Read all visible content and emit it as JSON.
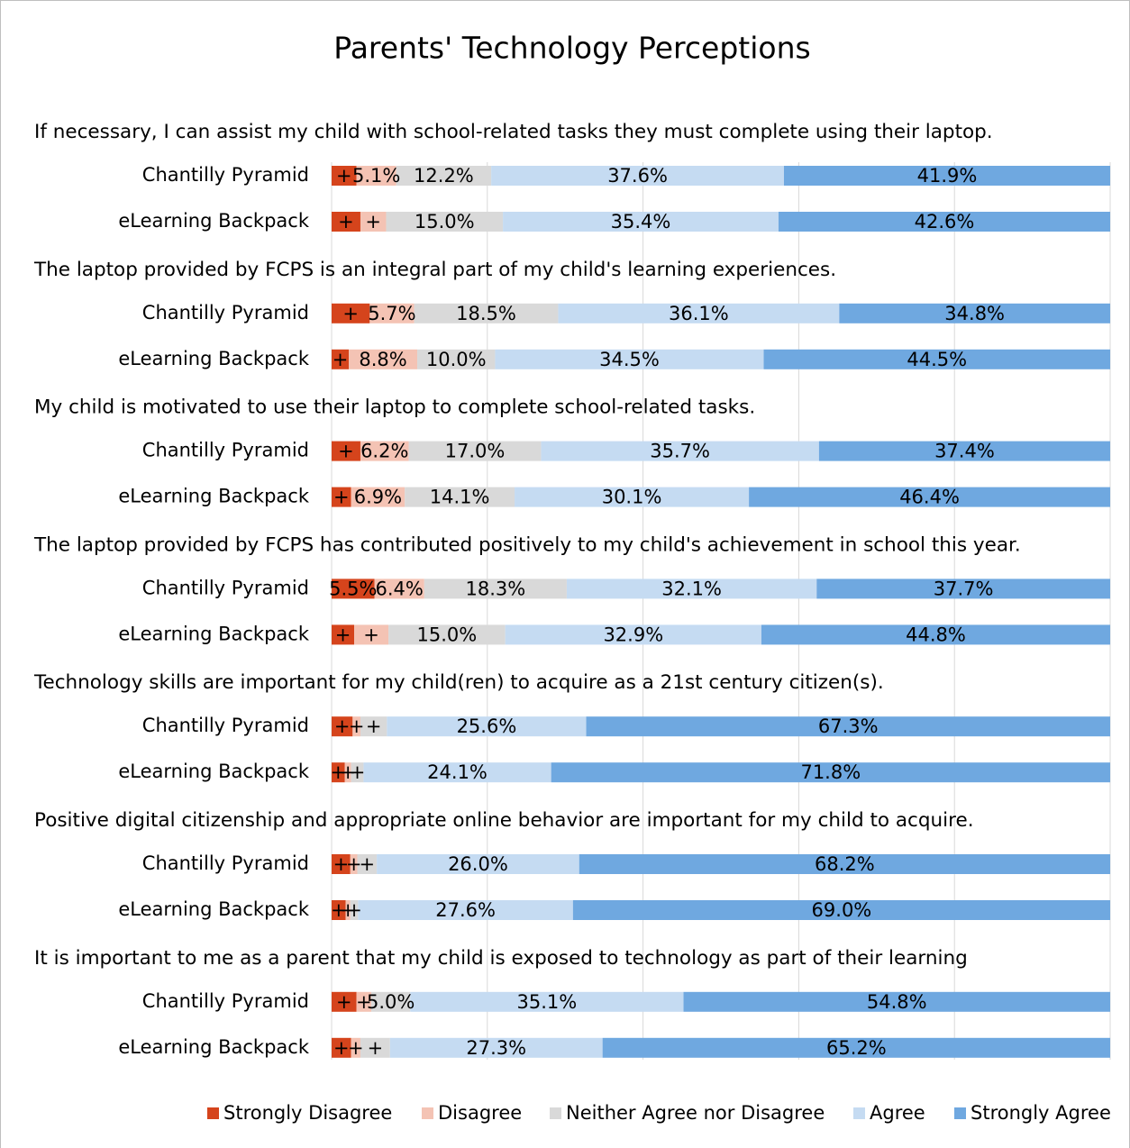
{
  "chart_data": {
    "type": "stacked_barh",
    "title": "Parents' Technology Perceptions",
    "questions": [
      "If necessary, I can assist my child with school-related tasks they must complete using their laptop.",
      "The laptop provided by FCPS is an integral part of my child's learning experiences.",
      "My child is motivated to use their laptop to complete school-related tasks.",
      "The laptop provided by FCPS has contributed positively to my child's achievement in school this year.",
      "Technology skills are important for my child(ren) to acquire as a 21st century citizen(s).",
      "Positive digital citizenship and appropriate online behavior are important for my child to acquire.",
      "It is important to me as a parent that my child is exposed to technology as part of their learning"
    ],
    "categories": [
      "Chantilly Pyramid",
      "eLearning Backpack",
      "Chantilly Pyramid",
      "eLearning Backpack",
      "Chantilly Pyramid",
      "eLearning Backpack",
      "Chantilly Pyramid",
      "eLearning Backpack",
      "Chantilly Pyramid",
      "eLearning Backpack",
      "Chantilly Pyramid",
      "eLearning Backpack",
      "Chantilly Pyramid",
      "eLearning Backpack"
    ],
    "series": [
      {
        "name": "Strongly Disagree",
        "color": "#d5441c",
        "values": [
          3.2,
          3.7,
          4.9,
          2.2,
          3.7,
          2.5,
          5.5,
          2.9,
          2.7,
          1.7,
          2.4,
          1.8,
          3.2,
          2.5
        ],
        "value_labels": [
          "+",
          "+",
          "+",
          "+",
          "+",
          "+",
          "5.5%",
          "+",
          "+",
          "+",
          "+",
          "+",
          "+",
          "+"
        ]
      },
      {
        "name": "Disagree",
        "color": "#f4c3b4",
        "values": [
          5.1,
          3.3,
          5.7,
          8.8,
          6.2,
          6.9,
          6.4,
          4.4,
          1.0,
          0.8,
          0.9,
          0.6,
          1.9,
          1.2
        ],
        "value_labels": [
          "5.1%",
          "+",
          "5.7%",
          "8.8%",
          "6.2%",
          "6.9%",
          "6.4%",
          "+",
          "+",
          "+",
          "+",
          "+",
          "+",
          "+"
        ]
      },
      {
        "name": "Neither Agree nor Disagree",
        "color": "#d9d9d9",
        "values": [
          12.2,
          15.0,
          18.5,
          10.0,
          17.0,
          14.1,
          18.3,
          15.0,
          3.4,
          1.6,
          2.5,
          1.0,
          5.0,
          3.8
        ],
        "value_labels": [
          "12.2%",
          "15.0%",
          "18.5%",
          "10.0%",
          "17.0%",
          "14.1%",
          "18.3%",
          "15.0%",
          "+",
          "+",
          "+",
          "+",
          "5.0%",
          "+"
        ]
      },
      {
        "name": "Agree",
        "color": "#c5dbf2",
        "values": [
          37.6,
          35.4,
          36.1,
          34.5,
          35.7,
          30.1,
          32.1,
          32.9,
          25.6,
          24.1,
          26.0,
          27.6,
          35.1,
          27.3
        ],
        "value_labels": [
          "37.6%",
          "35.4%",
          "36.1%",
          "34.5%",
          "35.7%",
          "30.1%",
          "32.1%",
          "32.9%",
          "25.6%",
          "24.1%",
          "26.0%",
          "27.6%",
          "35.1%",
          "27.3%"
        ]
      },
      {
        "name": "Strongly Agree",
        "color": "#6fa8e0",
        "values": [
          41.9,
          42.6,
          34.8,
          44.5,
          37.4,
          46.4,
          37.7,
          44.8,
          67.3,
          71.8,
          68.2,
          69.0,
          54.8,
          65.2
        ],
        "value_labels": [
          "41.9%",
          "42.6%",
          "34.8%",
          "44.5%",
          "37.4%",
          "46.4%",
          "37.7%",
          "44.8%",
          "67.3%",
          "71.8%",
          "68.2%",
          "69.0%",
          "54.8%",
          "65.2%"
        ]
      }
    ],
    "xlim": [
      0,
      100
    ],
    "xticks": [
      0,
      20,
      40,
      60,
      80,
      100
    ],
    "grid": true,
    "legend": "bottom"
  }
}
